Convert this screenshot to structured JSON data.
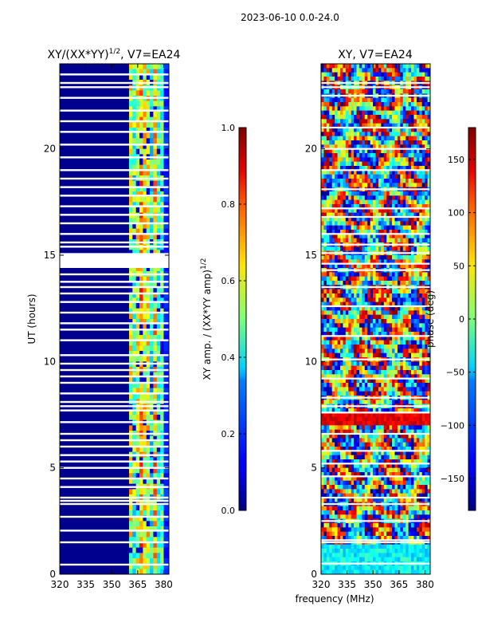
{
  "suptitle": "2023-06-10 0.0-24.0",
  "shared": {
    "xlabel": "frequency (MHz)",
    "xlim": [
      320,
      383
    ],
    "xticks": [
      320,
      335,
      350,
      365,
      380
    ],
    "ylim": [
      0,
      24
    ],
    "yticks": [
      0,
      5,
      10,
      15,
      20
    ]
  },
  "chart_data": [
    {
      "type": "heatmap",
      "title_main": "XY/(XX*YY)",
      "title_sup": "1/2",
      "title_rest": ", V7=EA24",
      "ylabel": "UT (hours)",
      "xlabel": "",
      "colorbar": {
        "label_main": "XY amp. / (XX*YY amp)",
        "label_sup": "1/2",
        "range": [
          0.0,
          1.0
        ],
        "ticks": [
          "0.0",
          "0.2",
          "0.4",
          "0.6",
          "0.8",
          "1.0"
        ],
        "tick_values": [
          0.0,
          0.2,
          0.4,
          0.6,
          0.8,
          1.0
        ],
        "colormap": "jet"
      },
      "description": "amplitude near 0 below ~360 MHz; structured values 0.3-0.7 between ~360 and ~378 MHz",
      "flagged_hours": [
        0.45,
        1.5,
        2.05,
        2.7,
        3.3,
        3.45,
        3.6,
        4.1,
        4.5,
        5.0,
        5.3,
        5.6,
        6.0,
        6.3,
        6.6,
        7.15,
        7.7,
        7.9,
        8.1,
        8.5,
        9.0,
        9.3,
        9.6,
        9.9,
        10.3,
        11.0,
        11.5,
        11.8,
        12.3,
        12.8,
        13.2,
        13.5,
        13.75,
        14.1,
        14.5,
        14.9,
        15.4,
        15.6,
        16.0,
        16.5,
        16.9,
        17.3,
        17.8,
        18.2,
        18.6,
        19.0,
        19.6,
        20.2,
        20.8,
        21.3,
        21.8,
        22.4,
        22.9,
        23.1,
        23.5
      ]
    },
    {
      "type": "heatmap",
      "title_main": "XY, V7=EA24",
      "ylabel": "",
      "xlabel": "frequency (MHz)",
      "colorbar": {
        "label_main": "phase (deg)",
        "range": [
          -180,
          180
        ],
        "ticks": [
          "−150",
          "−100",
          "−50",
          "0",
          "50",
          "100",
          "150"
        ],
        "tick_values": [
          -150,
          -100,
          -50,
          0,
          50,
          100,
          150
        ],
        "colormap": "jet"
      },
      "description": "phase wraps across full -180..180 range with banded structure",
      "flagged_hours": [
        0.5,
        1.5,
        1.6,
        2.5,
        3.3,
        3.6,
        4.6,
        5.2,
        5.8,
        6.6,
        7.6,
        7.9,
        8.3,
        9.2,
        10.1,
        11.2,
        12.6,
        13.5,
        14.3,
        14.6,
        15.1,
        15.5,
        16.0,
        16.8,
        17.2,
        18.1,
        19.0,
        20.0,
        21.0,
        22.5,
        22.9,
        23.1
      ]
    }
  ]
}
